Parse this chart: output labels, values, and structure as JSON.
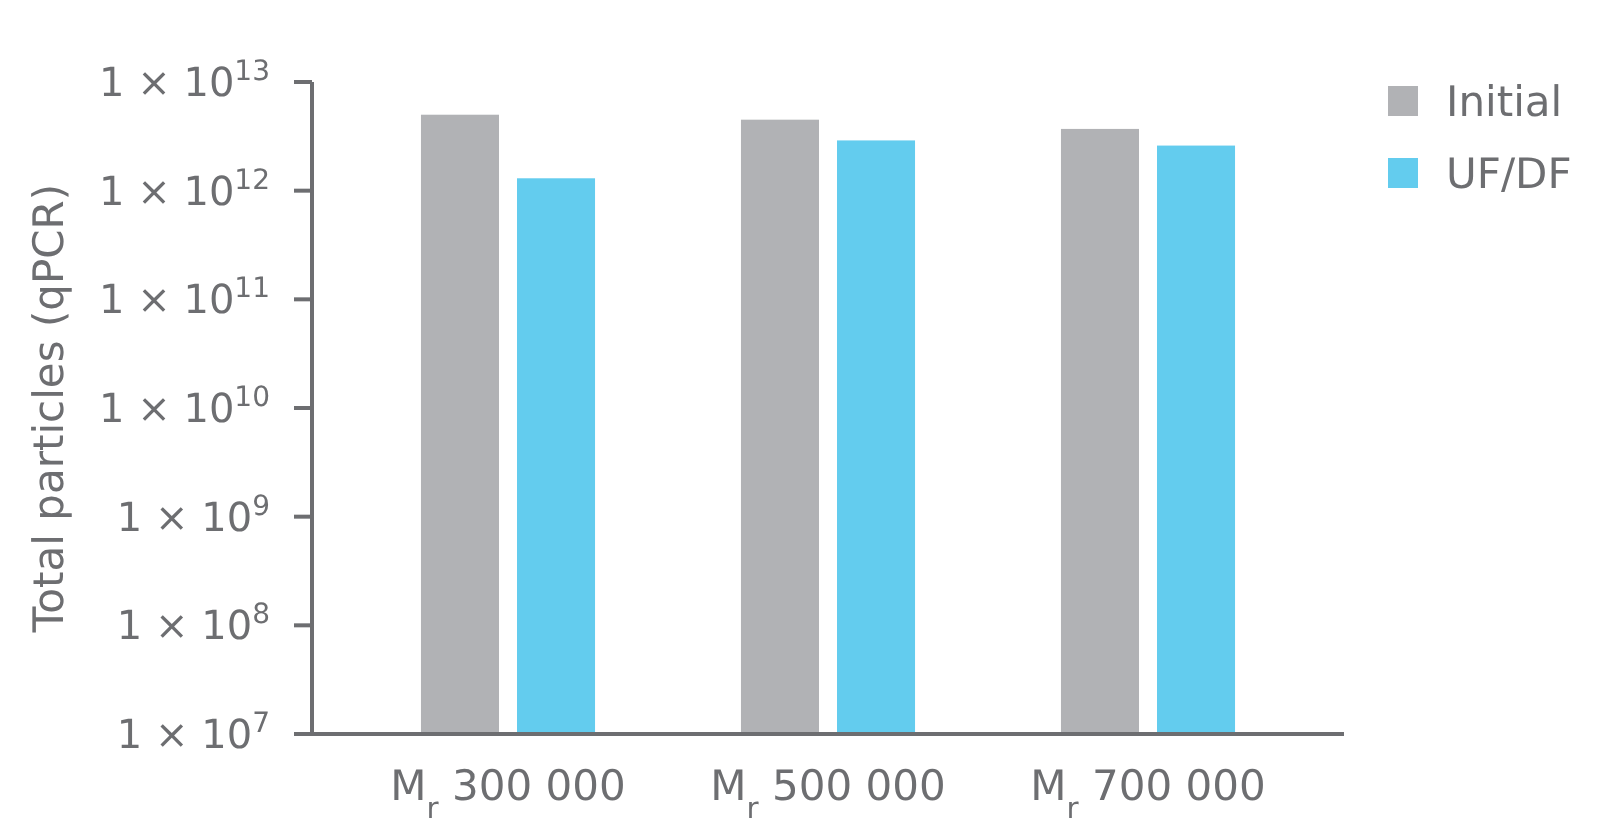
{
  "chart_data": {
    "type": "bar",
    "ylabel": "Total particles (qPCR)",
    "categories": [
      "M$_{r}$ 300 000",
      "M$_{r}$ 500 000",
      "M$_{r}$ 700 000"
    ],
    "series": [
      {
        "name": "Initial",
        "color": "#b1b2b5",
        "values": [
          5000000000000.0,
          4500000000000.0,
          3700000000000.0
        ]
      },
      {
        "name": "UF/DF",
        "color": "#63ccee",
        "values": [
          1300000000000.0,
          2900000000000.0,
          2600000000000.0
        ]
      }
    ],
    "log": true,
    "ylim": [
      10000000.0,
      10000000000000.0
    ],
    "yticks": [
      {
        "value": 10000000.0,
        "label": "1 × 10$^{7}$"
      },
      {
        "value": 100000000.0,
        "label": "1 × 10$^{8}$"
      },
      {
        "value": 1000000000.0,
        "label": "1 × 10$^{9}$"
      },
      {
        "value": 10000000000.0,
        "label": "1 × 10$^{10}$"
      },
      {
        "value": 100000000000.0,
        "label": "1 × 10$^{11}$"
      },
      {
        "value": 1000000000000.0,
        "label": "1 × 10$^{12}$"
      },
      {
        "value": 10000000000000.0,
        "label": "1 × 10$^{13}$"
      }
    ],
    "legend": "top right"
  }
}
